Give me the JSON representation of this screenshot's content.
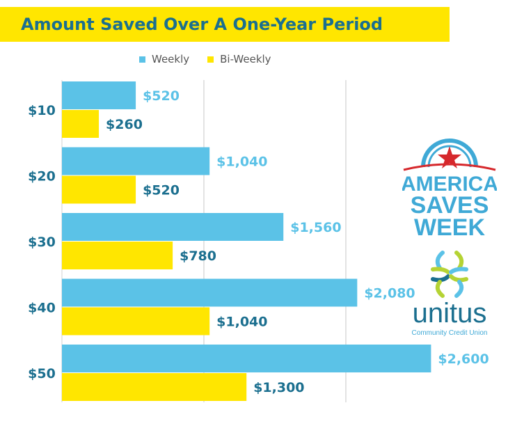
{
  "chart_data": {
    "type": "bar",
    "orientation": "horizontal",
    "title": "Amount Saved Over A One-Year Period",
    "categories": [
      "$10",
      "$20",
      "$30",
      "$40",
      "$50"
    ],
    "series": [
      {
        "name": "Weekly",
        "color": "#5bc2e7",
        "values": [
          520,
          1040,
          1560,
          2080,
          2600
        ],
        "labels": [
          "$520",
          "$1,040",
          "$1,560",
          "$2,080",
          "$2,600"
        ]
      },
      {
        "name": "Bi-Weekly",
        "color": "#ffe600",
        "values": [
          260,
          520,
          780,
          1040,
          1300
        ],
        "labels": [
          "$260",
          "$520",
          "$780",
          "$1,040",
          "$1,300"
        ]
      }
    ],
    "xlim": [
      0,
      3000
    ],
    "grid": true,
    "legend_position": "top"
  },
  "colors": {
    "title_banner": "#ffe600",
    "title_text": "#1b6f8f",
    "category_text": "#1b6f8f",
    "weekly_label": "#5bc2e7",
    "biweekly_label": "#1b6f8f",
    "gridline": "#d0d0d0"
  },
  "logos": {
    "asw": {
      "line1": "AMERICA",
      "line2": "SAVES",
      "line3": "WEEK"
    },
    "unitus": {
      "name": "unitus",
      "tagline": "Community Credit Union"
    }
  }
}
